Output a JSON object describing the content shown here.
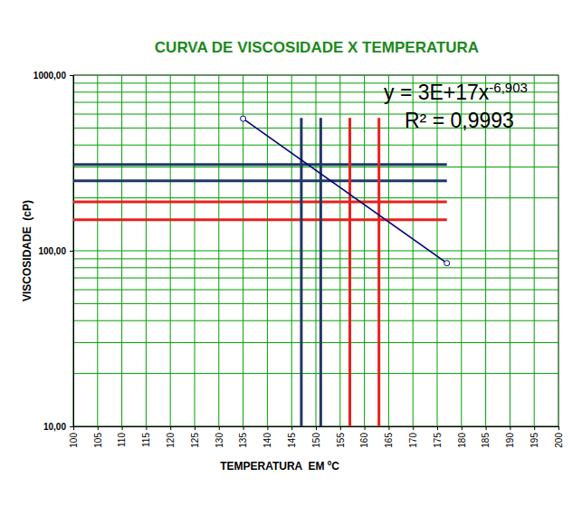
{
  "chart_data": {
    "type": "line",
    "title": "CURVA DE VISCOSIDADE X TEMPERATURA",
    "x_label": "TEMPERATURA  EM ºC",
    "y_label": "VISCOSIDADE  (cP)",
    "log": "y",
    "grid": true,
    "xlim": [
      100,
      200
    ],
    "ylim": [
      10,
      1000
    ],
    "xticks": [
      100,
      105,
      110,
      115,
      120,
      125,
      130,
      135,
      140,
      145,
      150,
      155,
      160,
      165,
      170,
      175,
      180,
      185,
      190,
      195,
      200
    ],
    "yticks": [
      {
        "value": 10,
        "label": "10,00"
      },
      {
        "value": 100,
        "label": "100,00"
      },
      {
        "value": 1000,
        "label": "1000,00"
      }
    ],
    "series": [
      {
        "type": "line",
        "color": "#000080",
        "marker": "circle",
        "x": [
          135,
          177
        ],
        "values": [
          565,
          85
        ]
      },
      {
        "type": "line",
        "color": "#1f3864",
        "x": [
          100,
          177
        ],
        "values": [
          310,
          310
        ]
      },
      {
        "type": "line",
        "color": "#1f3864",
        "x": [
          100,
          177
        ],
        "values": [
          250,
          250
        ]
      },
      {
        "type": "line",
        "color": "#e8201e",
        "x": [
          100,
          177
        ],
        "values": [
          190,
          190
        ]
      },
      {
        "type": "line",
        "color": "#e8201e",
        "x": [
          100,
          177
        ],
        "values": [
          150,
          150
        ]
      },
      {
        "type": "line",
        "color": "#1f3864",
        "x": [
          147,
          147
        ],
        "values": [
          10,
          570
        ]
      },
      {
        "type": "line",
        "color": "#1f3864",
        "x": [
          151,
          151
        ],
        "values": [
          10,
          570
        ]
      },
      {
        "type": "line",
        "color": "#e8201e",
        "x": [
          157,
          157
        ],
        "values": [
          10,
          570
        ]
      },
      {
        "type": "line",
        "color": "#e8201e",
        "x": [
          163,
          163
        ],
        "values": [
          10,
          570
        ]
      }
    ],
    "annotations": [
      {
        "text": "y = 3E+17x",
        "superscript": "-6,903"
      },
      {
        "text": "R² = 0,9993"
      }
    ]
  }
}
